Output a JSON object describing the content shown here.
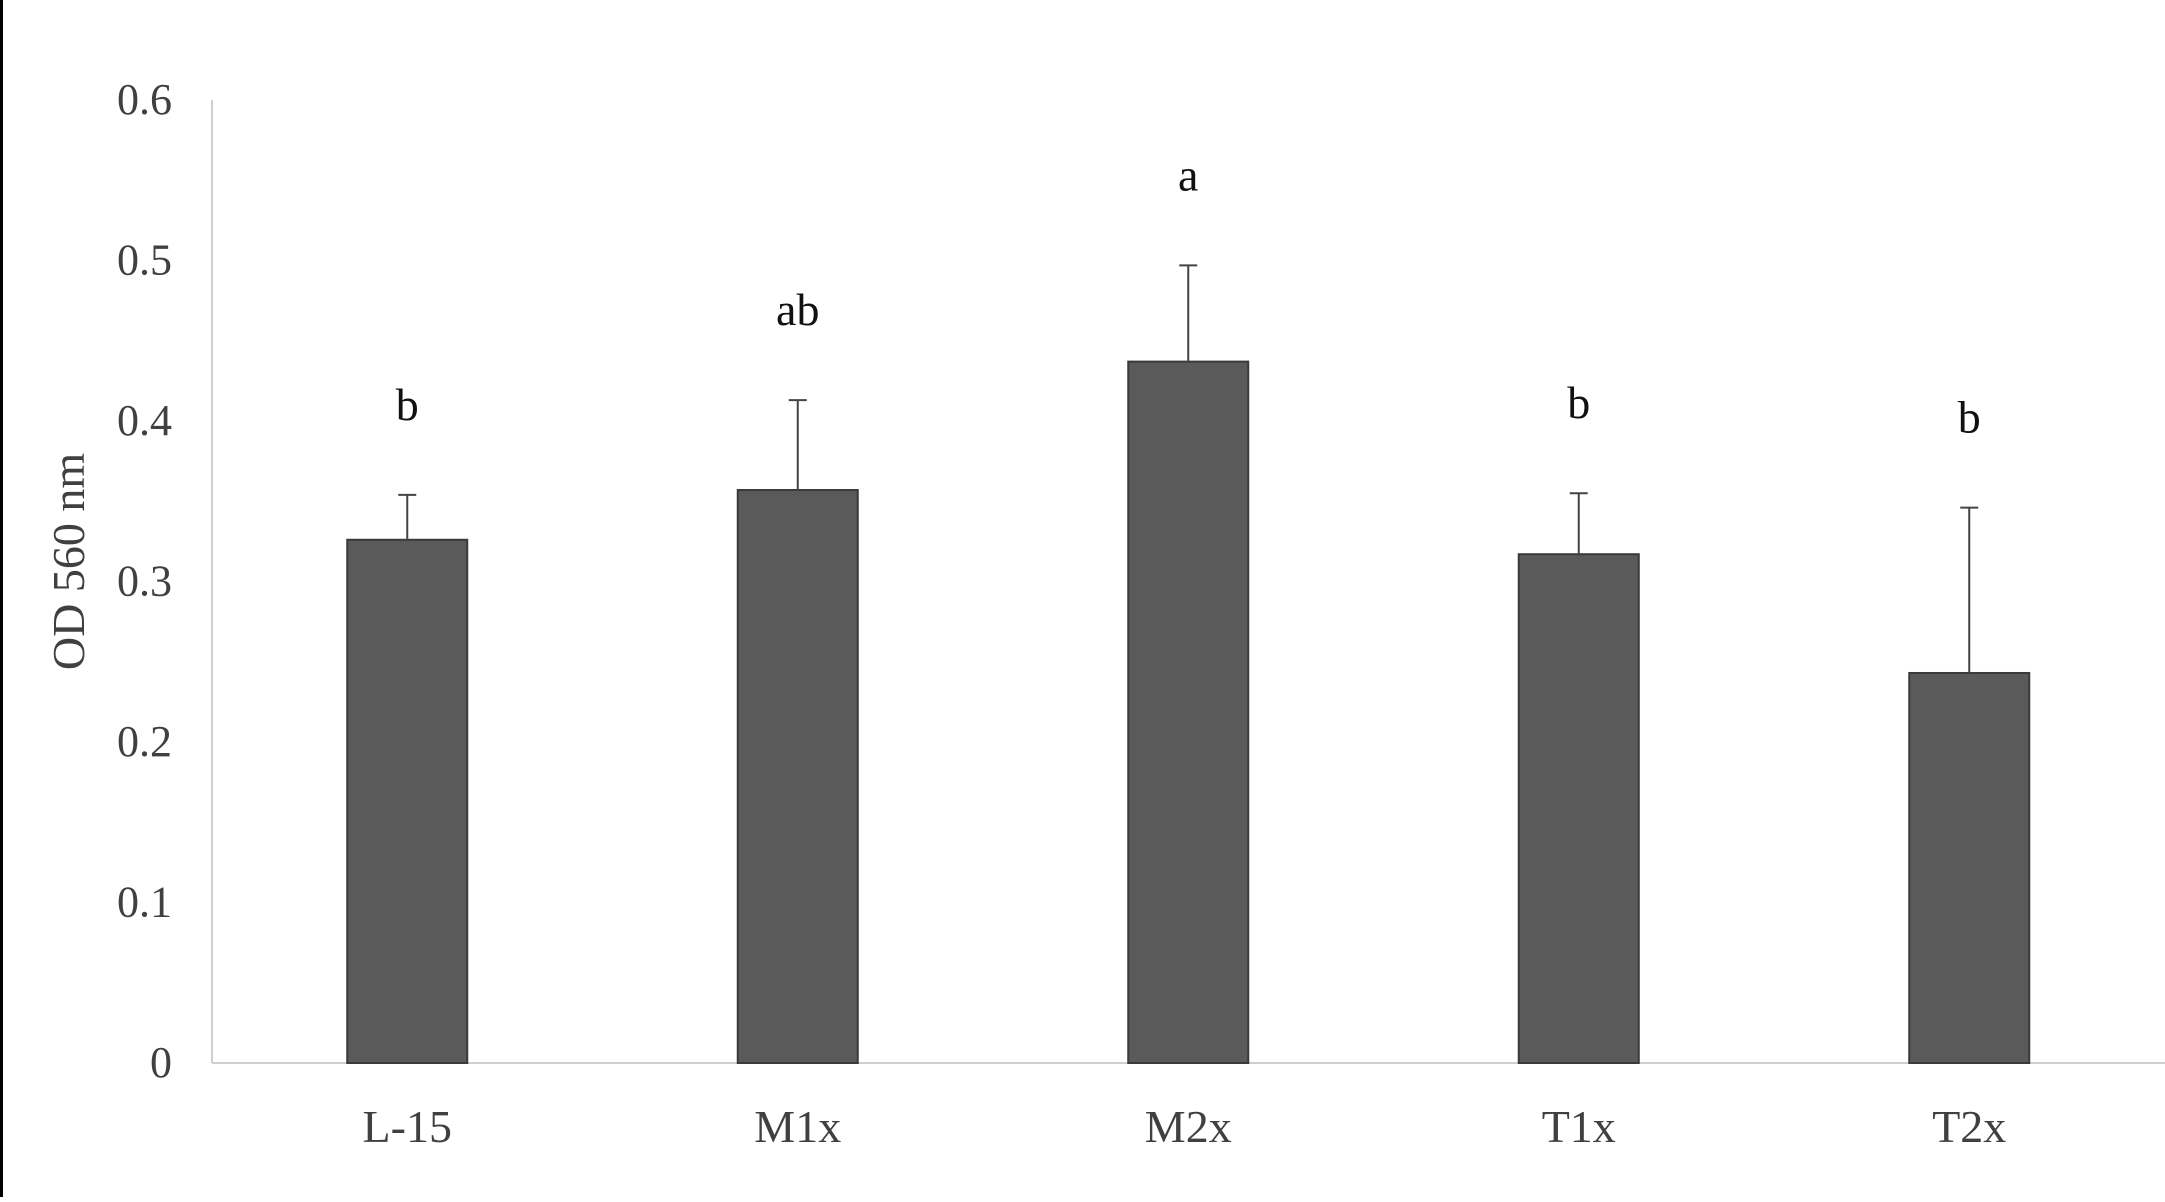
{
  "chart_data": {
    "type": "bar",
    "title": "",
    "xlabel": "",
    "ylabel": "OD 560 nm",
    "categories": [
      "L-15",
      "M1x",
      "M2x",
      "T1x",
      "T2x"
    ],
    "values": [
      0.326,
      0.357,
      0.437,
      0.317,
      0.243
    ],
    "error_upper": [
      0.354,
      0.413,
      0.497,
      0.355,
      0.346
    ],
    "annotations": [
      "b",
      "ab",
      "a",
      "b",
      "b"
    ],
    "ylim": [
      0,
      0.6
    ],
    "yticks": [
      "0",
      "0.1",
      "0.2",
      "0.3",
      "0.4",
      "0.5",
      "0.6"
    ],
    "ytick_values": [
      0,
      0.1,
      0.2,
      0.3,
      0.4,
      0.5,
      0.6
    ],
    "grid": false,
    "legend": "none",
    "colors": {
      "bar": "#5a5a5a",
      "bar_edge": "#3a3a3a",
      "error": "#444444",
      "axis": "#bfbfbf",
      "text": "#404040"
    }
  }
}
